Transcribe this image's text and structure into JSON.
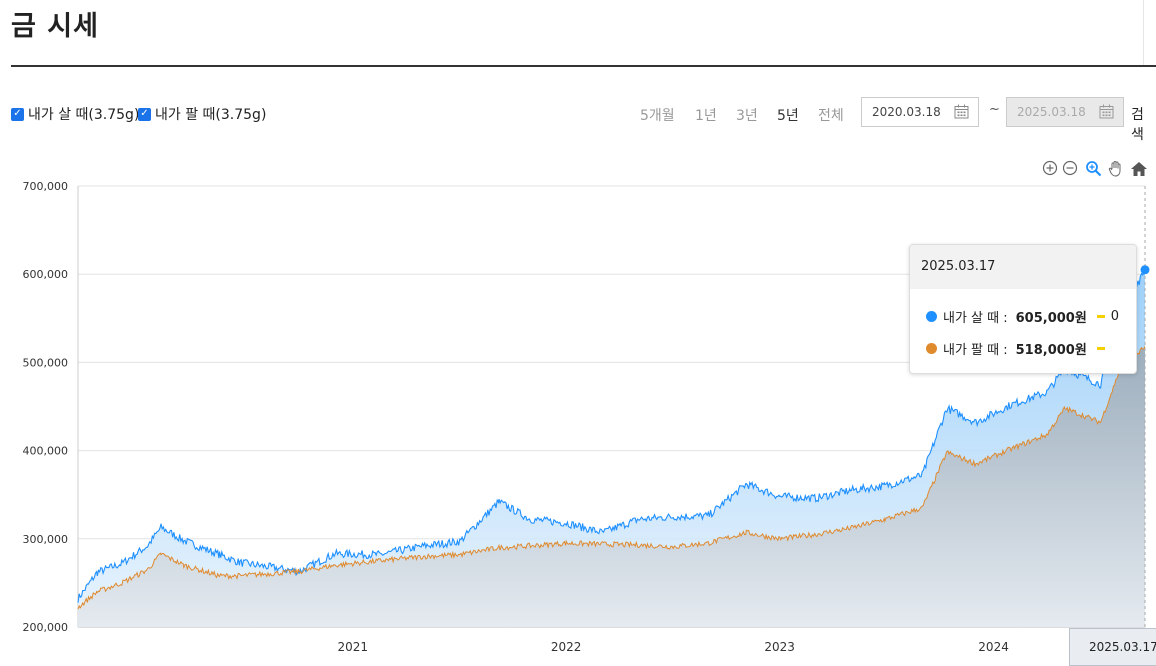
{
  "page": {
    "title": "금 시세"
  },
  "controls": {
    "buy_label": "내가 살 때(3.75g)",
    "sell_label": "내가 팔 때(3.75g)",
    "ranges": [
      "5개월",
      "1년",
      "3년",
      "5년",
      "전체"
    ],
    "active_range": "5년",
    "start_date": "2020.03.18",
    "end_date": "2025.03.18",
    "tilde": "~",
    "search_label": "검색"
  },
  "colors": {
    "buy": "#1e90ff",
    "sell": "#e08a2e",
    "buy_fill": "#bfe0fb",
    "sell_fill": "#b9c3cc",
    "dash": "#f5d000"
  },
  "toolbar_icons": [
    "zoom-in-icon",
    "zoom-out-icon",
    "zoom-select-icon",
    "pan-hand-icon",
    "home-icon"
  ],
  "tooltip": {
    "date": "2025.03.17",
    "buy_name": "내가 살 때 :",
    "buy_value": "605,000원",
    "buy_extra": "0",
    "sell_name": "내가 팔 때 :",
    "sell_value": "518,000원"
  },
  "crosshair_label": "2025.03.17 0",
  "chart_data": {
    "type": "area",
    "x_ticks": [
      "2021",
      "2022",
      "2023",
      "2024"
    ],
    "y_ticks": [
      "200,000",
      "300,000",
      "400,000",
      "500,000",
      "600,000",
      "700,000"
    ],
    "ylim": [
      200000,
      700000
    ],
    "xlim": [
      "2020-03-18",
      "2025-03-17"
    ],
    "grid": true,
    "series": [
      {
        "name": "내가 살 때",
        "x": [
          "2020-03-18",
          "2020-04-20",
          "2020-06-01",
          "2020-07-15",
          "2020-08-07",
          "2020-09-15",
          "2020-11-15",
          "2020-12-20",
          "2021-03-31",
          "2021-06-01",
          "2021-08-15",
          "2021-11-01",
          "2021-12-31",
          "2022-03-08",
          "2022-05-01",
          "2022-07-01",
          "2022-09-01",
          "2022-11-01",
          "2022-12-31",
          "2023-03-01",
          "2023-05-05",
          "2023-07-01",
          "2023-09-01",
          "2023-10-30",
          "2023-12-28",
          "2024-03-01",
          "2024-04-12",
          "2024-06-01",
          "2024-07-31",
          "2024-09-30",
          "2024-10-31",
          "2024-12-31",
          "2025-02-01",
          "2025-03-17"
        ],
        "y": [
          232000,
          262000,
          272000,
          292000,
          313000,
          298000,
          282000,
          273000,
          263000,
          283000,
          282000,
          292000,
          297000,
          342000,
          322000,
          318000,
          307000,
          322000,
          325000,
          326000,
          362000,
          348000,
          346000,
          355000,
          360000,
          372000,
          448000,
          432000,
          452000,
          466000,
          493000,
          475000,
          548000,
          605000
        ]
      },
      {
        "name": "내가 팔 때",
        "x": [
          "2020-03-18",
          "2020-04-20",
          "2020-06-01",
          "2020-07-15",
          "2020-08-07",
          "2020-09-15",
          "2020-11-15",
          "2020-12-20",
          "2021-03-31",
          "2021-06-01",
          "2021-08-15",
          "2021-11-01",
          "2021-12-31",
          "2022-03-08",
          "2022-05-01",
          "2022-07-01",
          "2022-09-01",
          "2022-11-01",
          "2022-12-31",
          "2023-03-01",
          "2023-05-05",
          "2023-07-01",
          "2023-09-01",
          "2023-10-30",
          "2023-12-28",
          "2024-03-01",
          "2024-04-12",
          "2024-06-01",
          "2024-07-31",
          "2024-09-30",
          "2024-10-31",
          "2024-12-31",
          "2025-02-01",
          "2025-03-17"
        ],
        "y": [
          222000,
          240000,
          250000,
          265000,
          283000,
          270000,
          258000,
          258000,
          263000,
          270000,
          275000,
          280000,
          282000,
          290000,
          292000,
          295000,
          294000,
          293000,
          291000,
          295000,
          307000,
          300000,
          305000,
          312000,
          322000,
          335000,
          398000,
          385000,
          402000,
          418000,
          448000,
          432000,
          490000,
          518000
        ]
      }
    ]
  }
}
